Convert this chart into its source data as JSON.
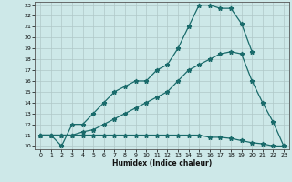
{
  "xlabel": "Humidex (Indice chaleur)",
  "background_color": "#cde8e8",
  "grid_color": "#b0c8c8",
  "line_color": "#1a6b6b",
  "xlim": [
    -0.5,
    23.5
  ],
  "ylim": [
    9.7,
    23.3
  ],
  "xticks": [
    0,
    1,
    2,
    3,
    4,
    5,
    6,
    7,
    8,
    9,
    10,
    11,
    12,
    13,
    14,
    15,
    16,
    17,
    18,
    19,
    20,
    21,
    22,
    23
  ],
  "yticks": [
    10,
    11,
    12,
    13,
    14,
    15,
    16,
    17,
    18,
    19,
    20,
    21,
    22,
    23
  ],
  "line1_x": [
    0,
    1,
    2,
    3,
    4,
    5,
    6,
    7,
    8,
    9,
    10,
    11,
    12,
    13,
    14,
    15,
    16,
    17,
    18,
    19,
    20
  ],
  "line1_y": [
    11,
    11,
    10,
    12,
    12,
    13,
    14,
    15,
    15.5,
    16,
    16,
    17,
    17.5,
    19,
    21,
    23,
    23,
    22.7,
    22.7,
    21.3,
    18.7
  ],
  "line2_x": [
    0,
    1,
    2,
    3,
    4,
    5,
    6,
    7,
    8,
    9,
    10,
    11,
    12,
    13,
    14,
    15,
    16,
    17,
    18,
    19,
    20,
    21,
    22,
    23
  ],
  "line2_y": [
    11,
    11,
    11,
    11,
    11.3,
    11.5,
    12,
    12.5,
    13,
    13.5,
    14,
    14.5,
    15,
    16,
    17,
    17.5,
    18,
    18.5,
    18.7,
    18.5,
    16,
    14,
    12.2,
    10
  ],
  "line3_x": [
    0,
    1,
    2,
    3,
    4,
    5,
    6,
    7,
    8,
    9,
    10,
    11,
    12,
    13,
    14,
    15,
    16,
    17,
    18,
    19,
    20,
    21,
    22,
    23
  ],
  "line3_y": [
    11,
    11,
    11,
    11,
    11,
    11,
    11,
    11,
    11,
    11,
    11,
    11,
    11,
    11,
    11,
    11,
    10.8,
    10.8,
    10.7,
    10.5,
    10.3,
    10.2,
    10,
    10
  ]
}
